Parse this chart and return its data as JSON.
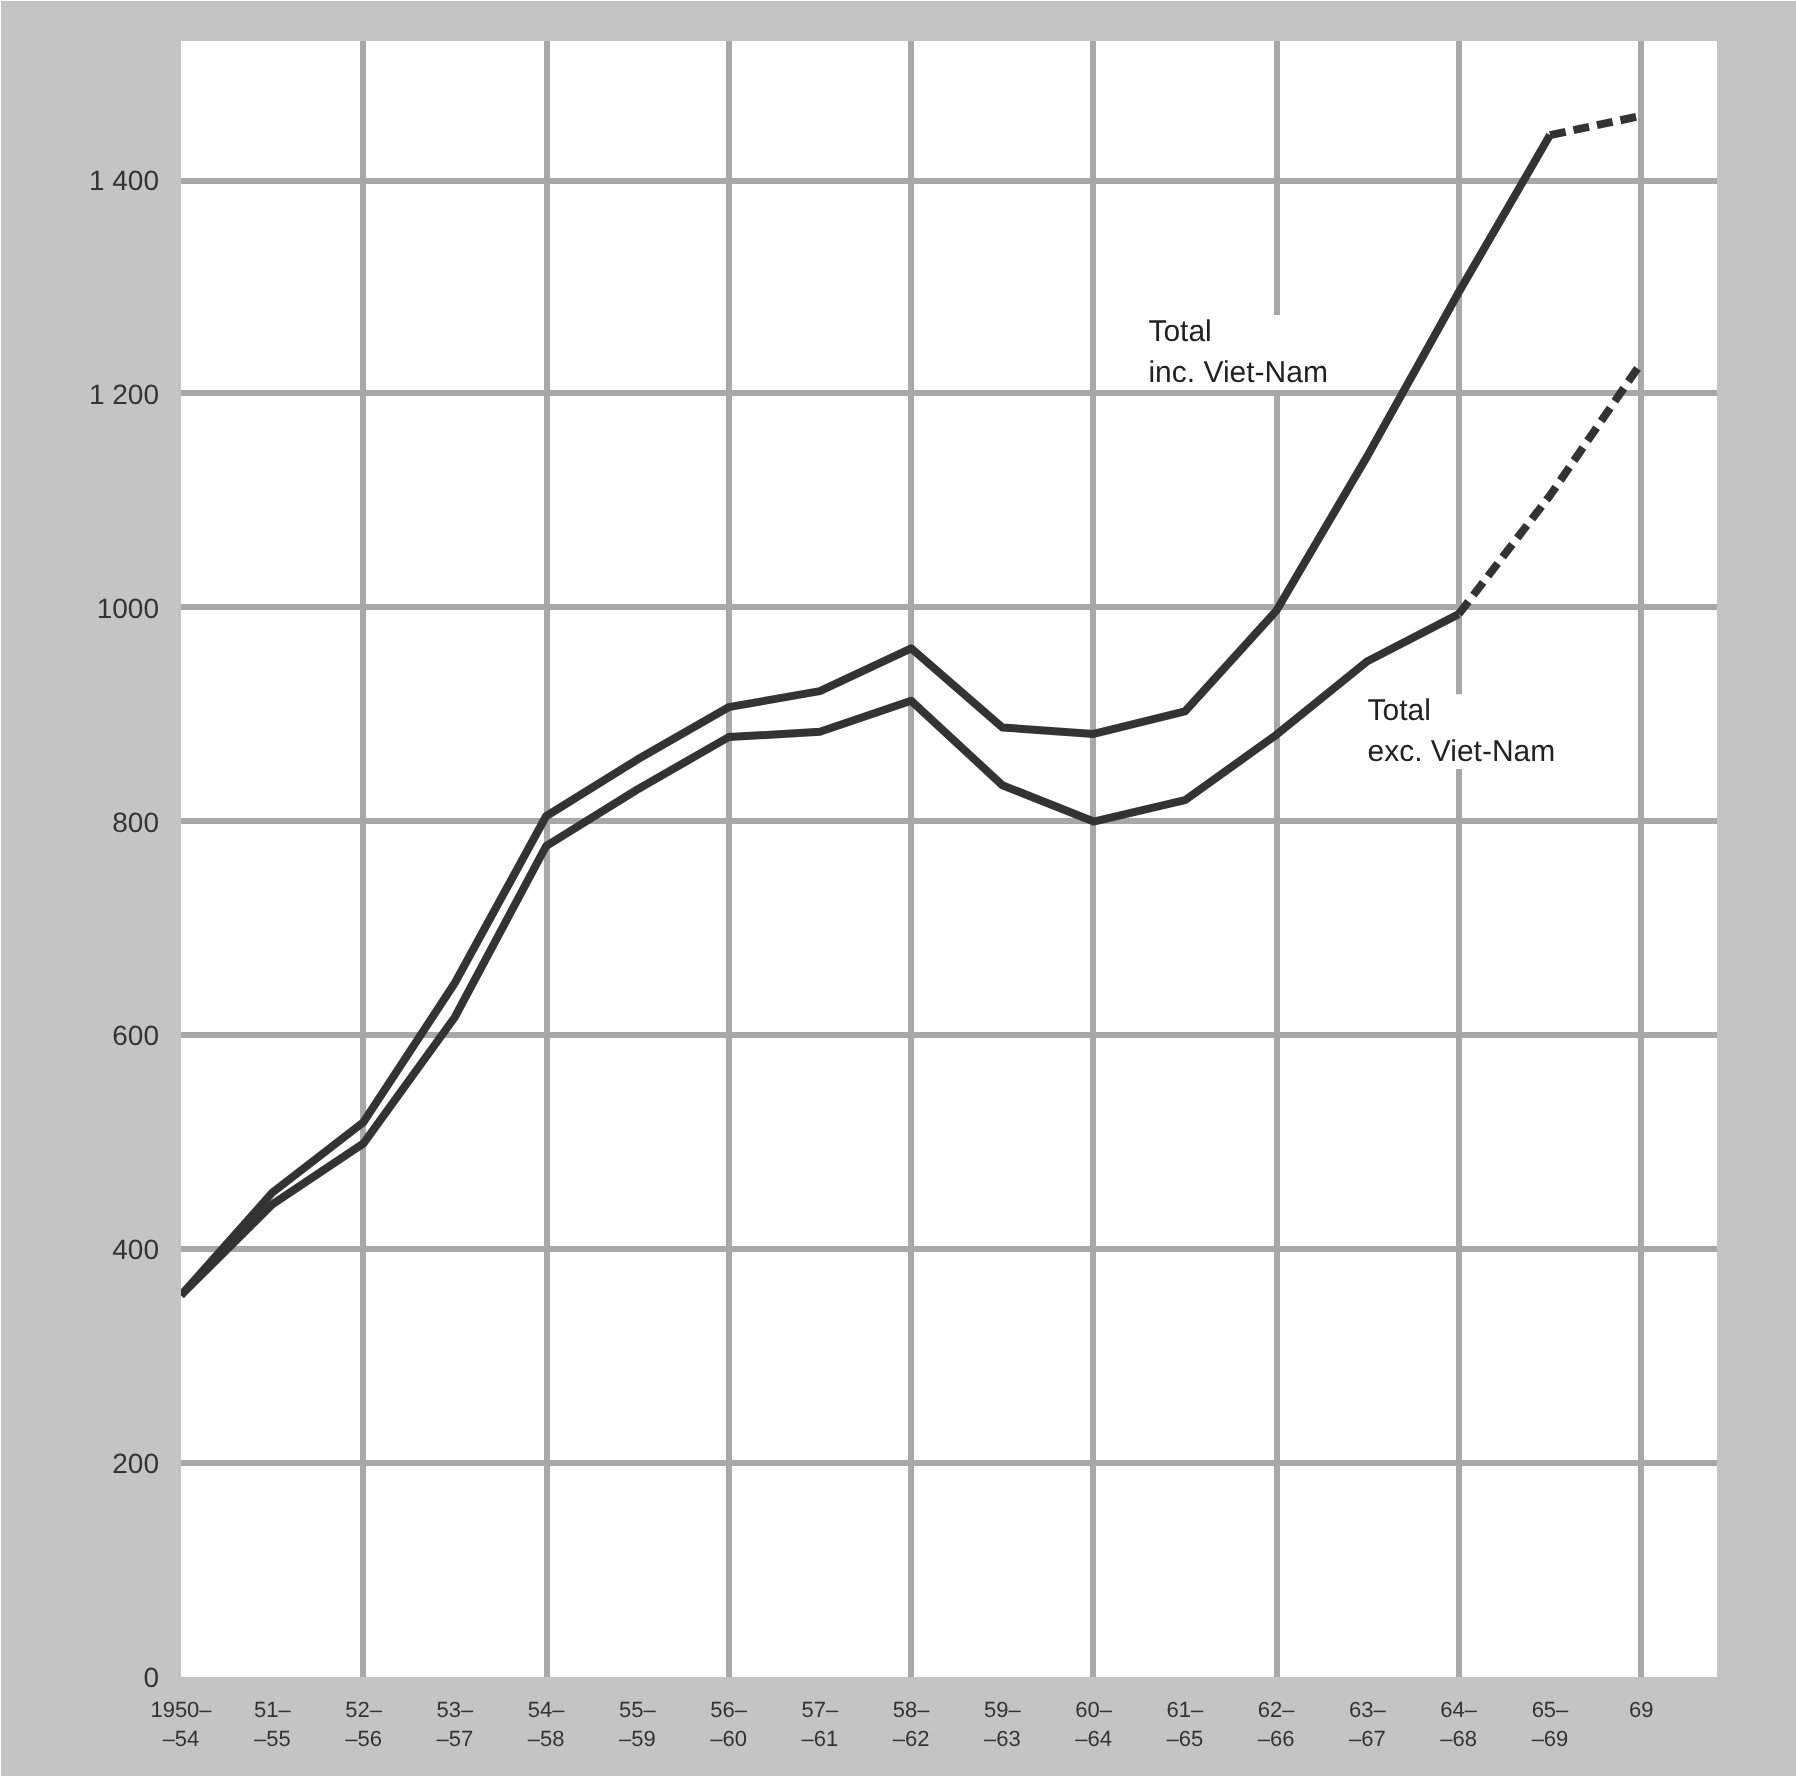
{
  "chart_data": {
    "type": "line",
    "categories": [
      "1950–\n–54",
      "51–\n–55",
      "52–\n–56",
      "53–\n–57",
      "54–\n–58",
      "55–\n–59",
      "56–\n–60",
      "57–\n–61",
      "58–\n–62",
      "59–\n–63",
      "60–\n–64",
      "61–\n–65",
      "62–\n–66",
      "63–\n–67",
      "64–\n–68",
      "65–\n–69",
      "69"
    ],
    "series": [
      {
        "name": "Total\ninc. Viet-Nam",
        "color": "#333333",
        "line_style": "solid",
        "values": [
          357,
          453,
          519,
          649,
          805,
          858,
          907,
          922,
          962,
          888,
          882,
          903,
          997,
          1142,
          1295,
          1442,
          null
        ]
      },
      {
        "color": "#333333",
        "line_style": "dashed",
        "values": [
          null,
          null,
          null,
          null,
          null,
          null,
          null,
          null,
          null,
          null,
          null,
          null,
          null,
          null,
          null,
          1442,
          1460
        ]
      },
      {
        "name": "Total\nexc. Viet-Nam",
        "color": "#333333",
        "line_style": "solid",
        "values": [
          357,
          442,
          499,
          617,
          777,
          830,
          879,
          884,
          913,
          834,
          800,
          820,
          881,
          950,
          994,
          null,
          null
        ]
      },
      {
        "color": "#333333",
        "line_style": "dashed",
        "values": [
          null,
          null,
          null,
          null,
          null,
          null,
          null,
          null,
          null,
          null,
          null,
          null,
          null,
          null,
          994,
          1105,
          1229
        ]
      }
    ],
    "ylim": [
      0,
      1530
    ],
    "yticks": [
      0,
      200,
      400,
      600,
      {
        "value": 800,
        "label": "800"
      },
      {
        "value": 1000,
        "label": "1000"
      },
      {
        "value": 1200,
        "label": "1 200"
      },
      {
        "value": 1400,
        "label": "1 400"
      }
    ],
    "grid": true,
    "marker": "none"
  }
}
